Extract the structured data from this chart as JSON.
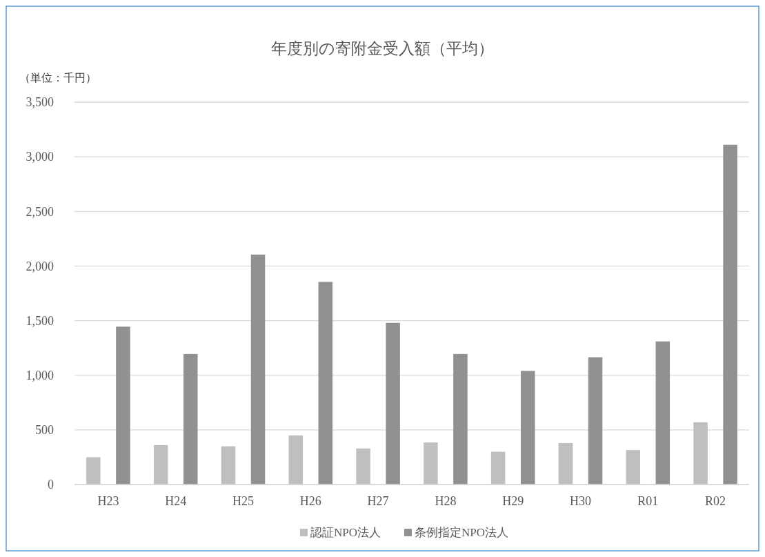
{
  "chart_data": {
    "type": "bar",
    "title": "年度別の寄附金受入額（平均）",
    "ylabel": "（単位：千円）",
    "categories": [
      "H23",
      "H24",
      "H25",
      "H26",
      "H27",
      "H28",
      "H29",
      "H30",
      "R01",
      "R02"
    ],
    "series": [
      {
        "name": "認証NPO法人",
        "color": "#bfbfbf",
        "values": [
          250,
          360,
          350,
          450,
          330,
          385,
          300,
          380,
          315,
          570
        ]
      },
      {
        "name": "条例指定NPO法人",
        "color": "#919191",
        "values": [
          1445,
          1195,
          2105,
          1855,
          1480,
          1195,
          1040,
          1165,
          1310,
          3110
        ]
      }
    ],
    "ylim": [
      0,
      3500
    ],
    "yticks": [
      {
        "value": 0,
        "label": "0"
      },
      {
        "value": 500,
        "label": "500"
      },
      {
        "value": 1000,
        "label": "1,000"
      },
      {
        "value": 1500,
        "label": "1,500"
      },
      {
        "value": 2000,
        "label": "2,000"
      },
      {
        "value": 2500,
        "label": "2,500"
      },
      {
        "value": 3000,
        "label": "3,000"
      },
      {
        "value": 3500,
        "label": "3,500"
      }
    ],
    "grid": "y",
    "legend": "bottom"
  }
}
